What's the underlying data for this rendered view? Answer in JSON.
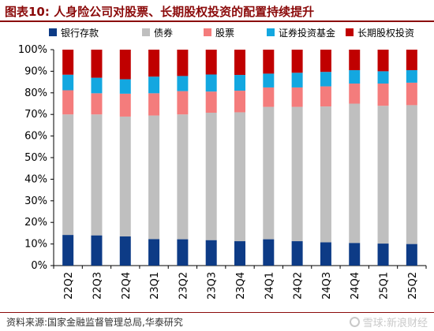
{
  "title": "图表10:  人身险公司对股票、长期股权投资的配置持续提升",
  "footer": {
    "source": "资料来源:国家金融监督管理总局,华泰研究",
    "watermark": "雪球:新浪财经"
  },
  "colors": {
    "title": "#8b0a0a",
    "bank_deposit": "#0d3b86",
    "bonds": "#bfbfbf",
    "stocks": "#f47c7c",
    "funds": "#13a7e0",
    "long_term_equity": "#c00000"
  },
  "chart_data": {
    "type": "stacked-bar-100",
    "categories": [
      "22Q2",
      "22Q3",
      "22Q4",
      "23Q1",
      "23Q2",
      "23Q3",
      "23Q4",
      "24Q1",
      "24Q2",
      "24Q3",
      "24Q4",
      "25Q1",
      "25Q2"
    ],
    "series": [
      {
        "name": "银行存款",
        "color": "#0d3b86",
        "values": [
          14.2,
          14.0,
          13.5,
          12.3,
          12.2,
          11.8,
          11.3,
          12.2,
          11.3,
          10.8,
          10.5,
          10.2,
          10.0
        ]
      },
      {
        "name": "债券",
        "color": "#bfbfbf",
        "values": [
          55.8,
          56.0,
          55.5,
          57.2,
          57.8,
          59.0,
          59.7,
          61.3,
          62.2,
          62.9,
          64.5,
          63.8,
          64.3
        ]
      },
      {
        "name": "股票",
        "color": "#f47c7c",
        "values": [
          11.2,
          9.8,
          10.6,
          10.3,
          10.8,
          9.8,
          10.0,
          9.0,
          9.0,
          9.3,
          9.3,
          10.3,
          10.4
        ]
      },
      {
        "name": "证券投资基金",
        "color": "#13a7e0",
        "values": [
          7.2,
          7.2,
          6.7,
          7.7,
          7.0,
          7.9,
          7.3,
          6.4,
          6.8,
          6.7,
          6.2,
          5.7,
          5.8
        ]
      },
      {
        "name": "长期股权投资",
        "color": "#c00000",
        "values": [
          11.6,
          13.0,
          13.7,
          12.5,
          12.2,
          11.5,
          11.7,
          11.1,
          10.7,
          10.3,
          9.5,
          10.0,
          9.5
        ]
      }
    ],
    "ylim": [
      0,
      100
    ],
    "yticks": [
      "0%",
      "10%",
      "20%",
      "30%",
      "40%",
      "50%",
      "60%",
      "70%",
      "80%",
      "90%",
      "100%"
    ],
    "legend_position": "top",
    "grid": false
  }
}
